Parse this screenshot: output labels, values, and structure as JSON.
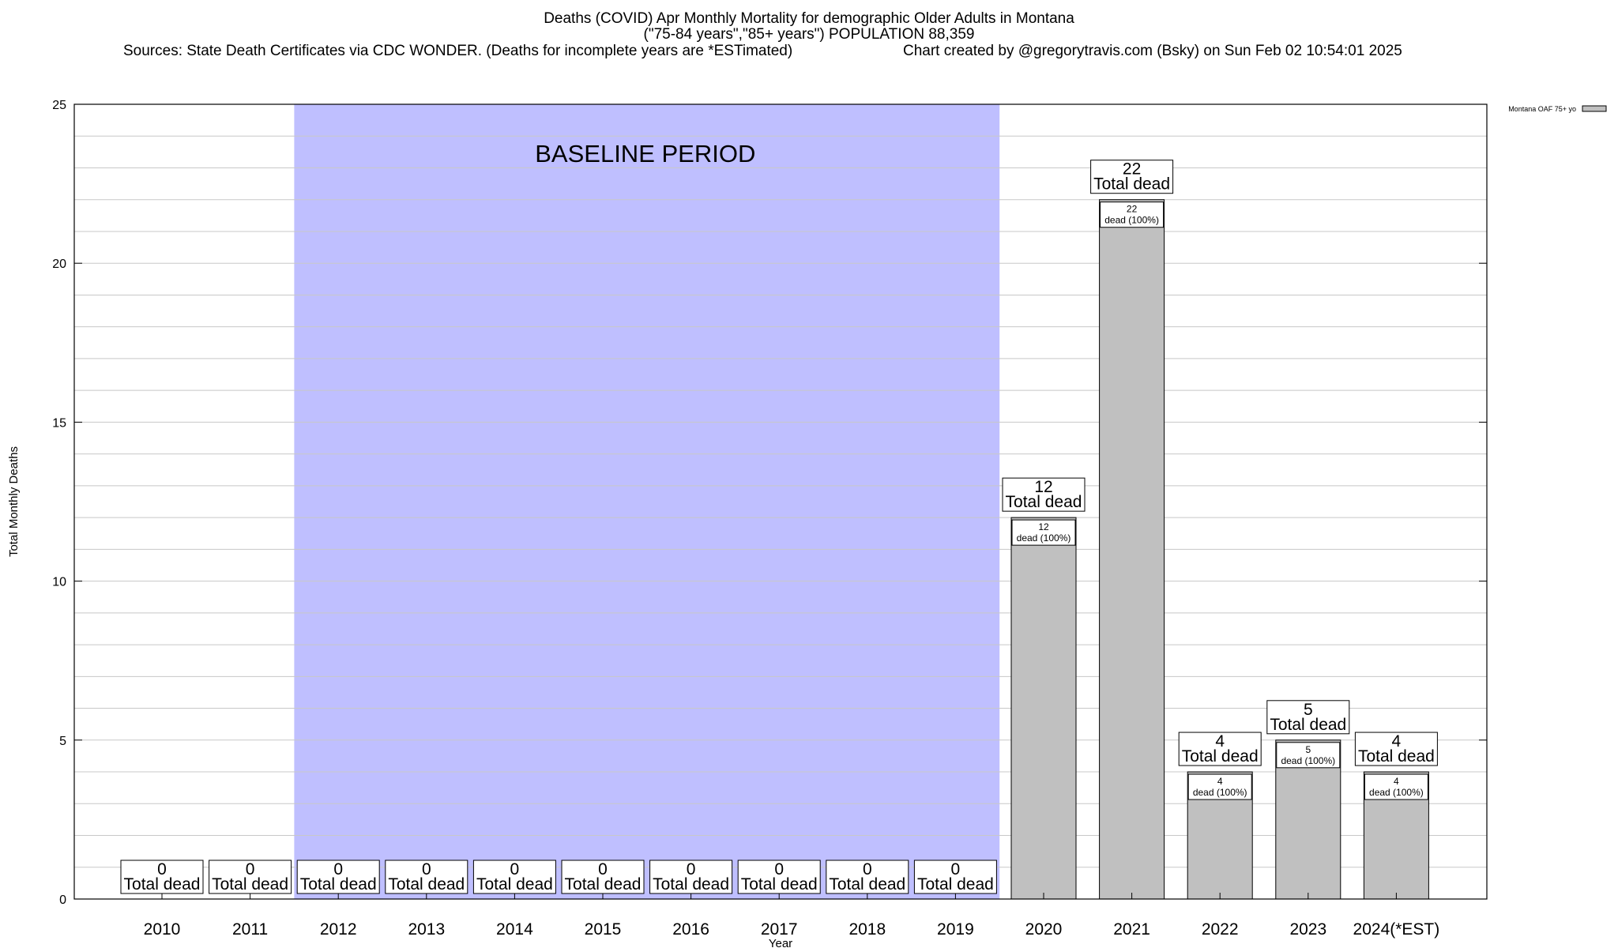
{
  "header": {
    "title_line1": "Deaths (COVID) Apr Monthly Mortality for demographic Older Adults in Montana",
    "title_line2": "(\"75-84 years\",\"85+ years\") POPULATION 88,359",
    "sources": "Sources: State Death Certificates via CDC WONDER. (Deaths for incomplete years are *ESTimated)",
    "credit": "Chart created by @gregorytravis.com (Bsky) on Sun Feb 02 10:54:01 2025"
  },
  "chart_data": {
    "type": "bar",
    "categories": [
      "2010",
      "2011",
      "2012",
      "2013",
      "2014",
      "2015",
      "2016",
      "2017",
      "2018",
      "2019",
      "2020",
      "2021",
      "2022",
      "2023",
      "2024(*EST)"
    ],
    "series": [
      {
        "name": "Montana OAF 75+ yo",
        "values": [
          0,
          0,
          0,
          0,
          0,
          0,
          0,
          0,
          0,
          0,
          12,
          22,
          4,
          5,
          4
        ],
        "color": "#c0c0c0"
      }
    ],
    "xlabel": "Year",
    "ylabel": "Total Monthly Deaths",
    "ylim": [
      0,
      25
    ],
    "yticks": [
      0,
      5,
      10,
      15,
      20,
      25
    ],
    "grid": true,
    "legend_position": "top-right",
    "total_label_text": "Total dead",
    "inner_label_text": "dead (100%)",
    "baseline": {
      "label": "BASELINE PERIOD",
      "start": "2012",
      "end": "2019",
      "color": "#bfbfff"
    }
  }
}
